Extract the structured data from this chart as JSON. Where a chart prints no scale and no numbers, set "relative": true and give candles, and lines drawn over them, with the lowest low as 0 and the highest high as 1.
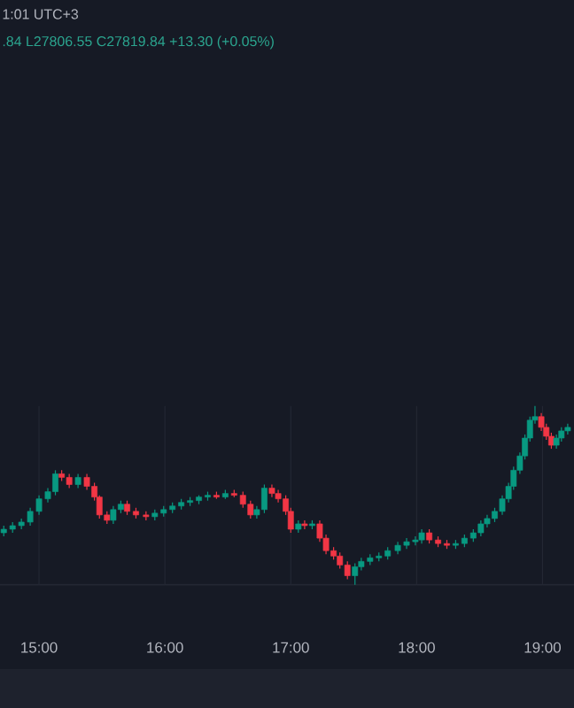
{
  "chart_data": {
    "type": "candlestick",
    "relative": true,
    "grid": "x",
    "annotations": [
      "1:01 UTC+3",
      ".84 L27806.55 C27819.84 +13.30 (+0.05%)"
    ],
    "xlim": [
      14.69,
      19.25
    ],
    "xticks": [
      {
        "value": 15,
        "label": "15:00"
      },
      {
        "value": 16,
        "label": "16:00"
      },
      {
        "value": 17,
        "label": "17:00"
      },
      {
        "value": 18,
        "label": "18:00"
      },
      {
        "value": 19,
        "label": "19:00"
      }
    ],
    "x": [
      14.72,
      14.79,
      14.86,
      14.93,
      15.0,
      15.07,
      15.13,
      15.18,
      15.24,
      15.31,
      15.38,
      15.44,
      15.48,
      15.54,
      15.59,
      15.65,
      15.7,
      15.77,
      15.85,
      15.92,
      15.99,
      16.06,
      16.13,
      16.2,
      16.27,
      16.34,
      16.41,
      16.48,
      16.55,
      16.62,
      16.68,
      16.73,
      16.79,
      16.85,
      16.9,
      16.96,
      17.0,
      17.06,
      17.11,
      17.17,
      17.23,
      17.28,
      17.34,
      17.39,
      17.45,
      17.51,
      17.56,
      17.63,
      17.7,
      17.77,
      17.85,
      17.92,
      17.99,
      18.04,
      18.1,
      18.17,
      18.24,
      18.31,
      18.38,
      18.45,
      18.51,
      18.56,
      18.62,
      18.68,
      18.73,
      18.77,
      18.82,
      18.86,
      18.9,
      18.94,
      18.99,
      19.03,
      19.07,
      19.11,
      19.15,
      19.2
    ],
    "ohlc": [
      [
        0.29,
        0.33,
        0.27,
        0.31
      ],
      [
        0.31,
        0.35,
        0.29,
        0.33
      ],
      [
        0.33,
        0.37,
        0.31,
        0.35
      ],
      [
        0.35,
        0.43,
        0.33,
        0.41
      ],
      [
        0.41,
        0.5,
        0.39,
        0.48
      ],
      [
        0.48,
        0.54,
        0.46,
        0.52
      ],
      [
        0.52,
        0.64,
        0.5,
        0.62
      ],
      [
        0.62,
        0.64,
        0.58,
        0.6
      ],
      [
        0.6,
        0.62,
        0.54,
        0.56
      ],
      [
        0.56,
        0.62,
        0.54,
        0.6
      ],
      [
        0.6,
        0.62,
        0.53,
        0.55
      ],
      [
        0.55,
        0.57,
        0.47,
        0.49
      ],
      [
        0.49,
        0.5,
        0.37,
        0.39
      ],
      [
        0.39,
        0.41,
        0.34,
        0.36
      ],
      [
        0.36,
        0.44,
        0.34,
        0.42
      ],
      [
        0.42,
        0.47,
        0.4,
        0.45
      ],
      [
        0.45,
        0.47,
        0.39,
        0.41
      ],
      [
        0.41,
        0.43,
        0.37,
        0.39
      ],
      [
        0.39,
        0.41,
        0.36,
        0.38
      ],
      [
        0.38,
        0.42,
        0.36,
        0.4
      ],
      [
        0.4,
        0.44,
        0.38,
        0.42
      ],
      [
        0.42,
        0.46,
        0.4,
        0.44
      ],
      [
        0.44,
        0.48,
        0.42,
        0.46
      ],
      [
        0.46,
        0.49,
        0.44,
        0.47
      ],
      [
        0.47,
        0.5,
        0.45,
        0.49
      ],
      [
        0.49,
        0.52,
        0.47,
        0.5
      ],
      [
        0.5,
        0.52,
        0.48,
        0.49
      ],
      [
        0.49,
        0.53,
        0.48,
        0.51
      ],
      [
        0.51,
        0.53,
        0.49,
        0.5
      ],
      [
        0.5,
        0.52,
        0.43,
        0.45
      ],
      [
        0.45,
        0.47,
        0.37,
        0.39
      ],
      [
        0.39,
        0.44,
        0.37,
        0.42
      ],
      [
        0.42,
        0.56,
        0.4,
        0.54
      ],
      [
        0.54,
        0.56,
        0.49,
        0.51
      ],
      [
        0.51,
        0.53,
        0.46,
        0.48
      ],
      [
        0.48,
        0.5,
        0.39,
        0.41
      ],
      [
        0.41,
        0.43,
        0.29,
        0.31
      ],
      [
        0.31,
        0.36,
        0.29,
        0.34
      ],
      [
        0.34,
        0.36,
        0.31,
        0.33
      ],
      [
        0.33,
        0.36,
        0.31,
        0.34
      ],
      [
        0.34,
        0.36,
        0.24,
        0.26
      ],
      [
        0.26,
        0.28,
        0.17,
        0.19
      ],
      [
        0.19,
        0.21,
        0.14,
        0.16
      ],
      [
        0.16,
        0.18,
        0.09,
        0.11
      ],
      [
        0.11,
        0.13,
        0.03,
        0.05
      ],
      [
        0.05,
        0.12,
        0,
        0.1
      ],
      [
        0.1,
        0.15,
        0.08,
        0.13
      ],
      [
        0.13,
        0.17,
        0.11,
        0.15
      ],
      [
        0.15,
        0.18,
        0.13,
        0.16
      ],
      [
        0.16,
        0.21,
        0.14,
        0.19
      ],
      [
        0.19,
        0.24,
        0.17,
        0.22
      ],
      [
        0.22,
        0.26,
        0.2,
        0.24
      ],
      [
        0.24,
        0.27,
        0.22,
        0.25
      ],
      [
        0.25,
        0.31,
        0.23,
        0.29
      ],
      [
        0.29,
        0.31,
        0.23,
        0.25
      ],
      [
        0.25,
        0.27,
        0.21,
        0.23
      ],
      [
        0.23,
        0.25,
        0.2,
        0.22
      ],
      [
        0.22,
        0.25,
        0.2,
        0.23
      ],
      [
        0.23,
        0.28,
        0.21,
        0.26
      ],
      [
        0.26,
        0.31,
        0.24,
        0.29
      ],
      [
        0.29,
        0.36,
        0.27,
        0.34
      ],
      [
        0.34,
        0.39,
        0.32,
        0.37
      ],
      [
        0.37,
        0.43,
        0.35,
        0.41
      ],
      [
        0.41,
        0.5,
        0.39,
        0.48
      ],
      [
        0.48,
        0.57,
        0.46,
        0.55
      ],
      [
        0.55,
        0.66,
        0.53,
        0.64
      ],
      [
        0.64,
        0.74,
        0.62,
        0.72
      ],
      [
        0.72,
        0.84,
        0.7,
        0.82
      ],
      [
        0.82,
        0.94,
        0.8,
        0.92
      ],
      [
        0.92,
        1.0,
        0.9,
        0.94
      ],
      [
        0.94,
        0.96,
        0.86,
        0.88
      ],
      [
        0.88,
        0.9,
        0.81,
        0.83
      ],
      [
        0.83,
        0.85,
        0.76,
        0.78
      ],
      [
        0.78,
        0.84,
        0.76,
        0.82
      ],
      [
        0.82,
        0.88,
        0.8,
        0.86
      ],
      [
        0.86,
        0.9,
        0.84,
        0.88
      ]
    ],
    "colors": [
      "#089981",
      "#089981",
      "#089981",
      "#089981",
      "#089981",
      "#089981",
      "#089981",
      "#f23645",
      "#f23645",
      "#089981",
      "#f23645",
      "#f23645",
      "#f23645",
      "#f23645",
      "#089981",
      "#089981",
      "#f23645",
      "#f23645",
      "#f23645",
      "#089981",
      "#089981",
      "#089981",
      "#089981",
      "#089981",
      "#089981",
      "#089981",
      "#f23645",
      "#089981",
      "#f23645",
      "#f23645",
      "#f23645",
      "#089981",
      "#089981",
      "#f23645",
      "#f23645",
      "#f23645",
      "#f23645",
      "#089981",
      "#f23645",
      "#089981",
      "#f23645",
      "#f23645",
      "#f23645",
      "#f23645",
      "#f23645",
      "#089981",
      "#089981",
      "#089981",
      "#089981",
      "#089981",
      "#089981",
      "#089981",
      "#089981",
      "#089981",
      "#f23645",
      "#f23645",
      "#f23645",
      "#089981",
      "#089981",
      "#089981",
      "#089981",
      "#089981",
      "#089981",
      "#089981",
      "#089981",
      "#089981",
      "#089981",
      "#089981",
      "#089981",
      "#089981",
      "#f23645",
      "#f23645",
      "#f23645",
      "#089981",
      "#089981",
      "#089981"
    ]
  }
}
